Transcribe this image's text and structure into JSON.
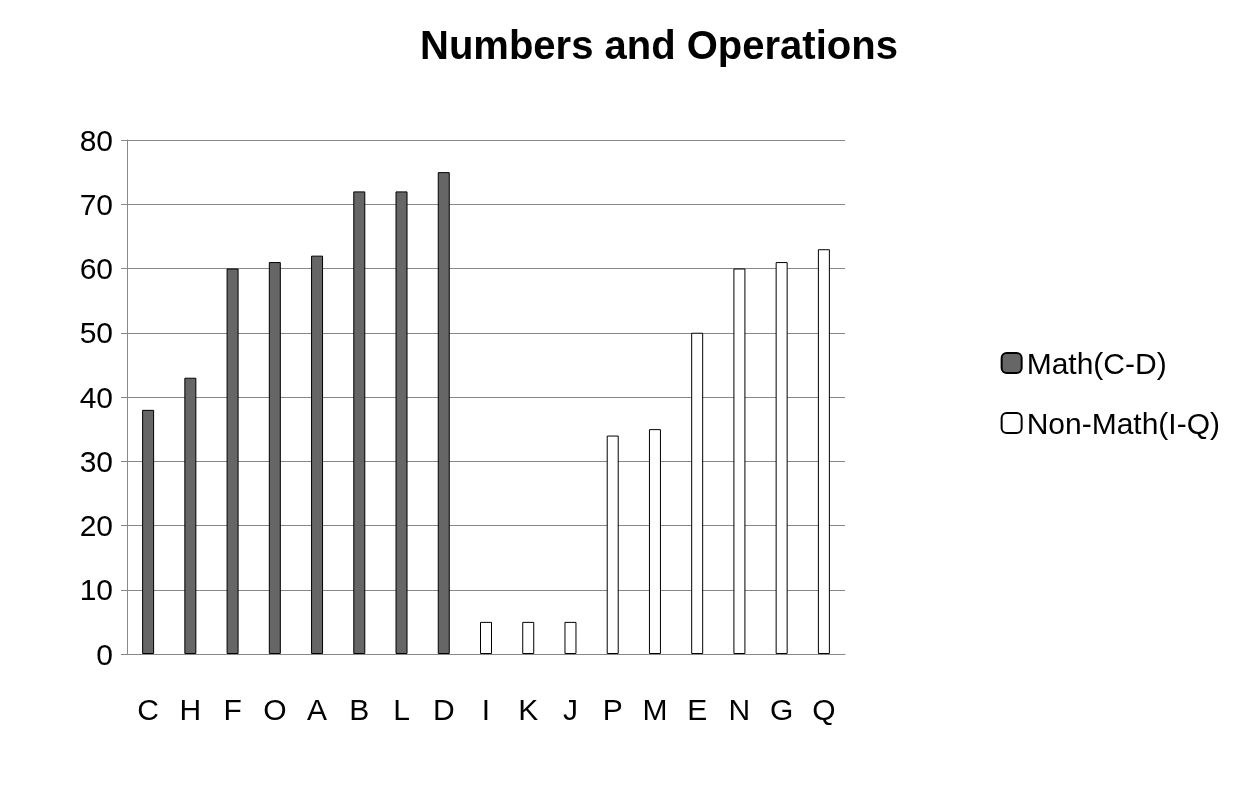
{
  "chart_data": {
    "type": "bar",
    "title": "Numbers and Operations",
    "categories": [
      "C",
      "H",
      "F",
      "O",
      "A",
      "B",
      "L",
      "D",
      "I",
      "K",
      "J",
      "P",
      "M",
      "E",
      "N",
      "G",
      "Q"
    ],
    "series": [
      {
        "name": "Math(C-D)",
        "color": "#666666",
        "values": [
          38,
          43,
          60,
          61,
          62,
          72,
          72,
          75,
          null,
          null,
          null,
          null,
          null,
          null,
          null,
          null,
          null
        ]
      },
      {
        "name": "Non-Math(I-Q)",
        "color": "#ffffff",
        "values": [
          null,
          null,
          null,
          null,
          null,
          null,
          null,
          null,
          5,
          5,
          5,
          34,
          35,
          50,
          60,
          61,
          63
        ]
      }
    ],
    "ylim": [
      0,
      80
    ],
    "yticks": [
      0,
      10,
      20,
      30,
      40,
      50,
      60,
      70,
      80
    ],
    "grid": "y",
    "legend": "right"
  }
}
